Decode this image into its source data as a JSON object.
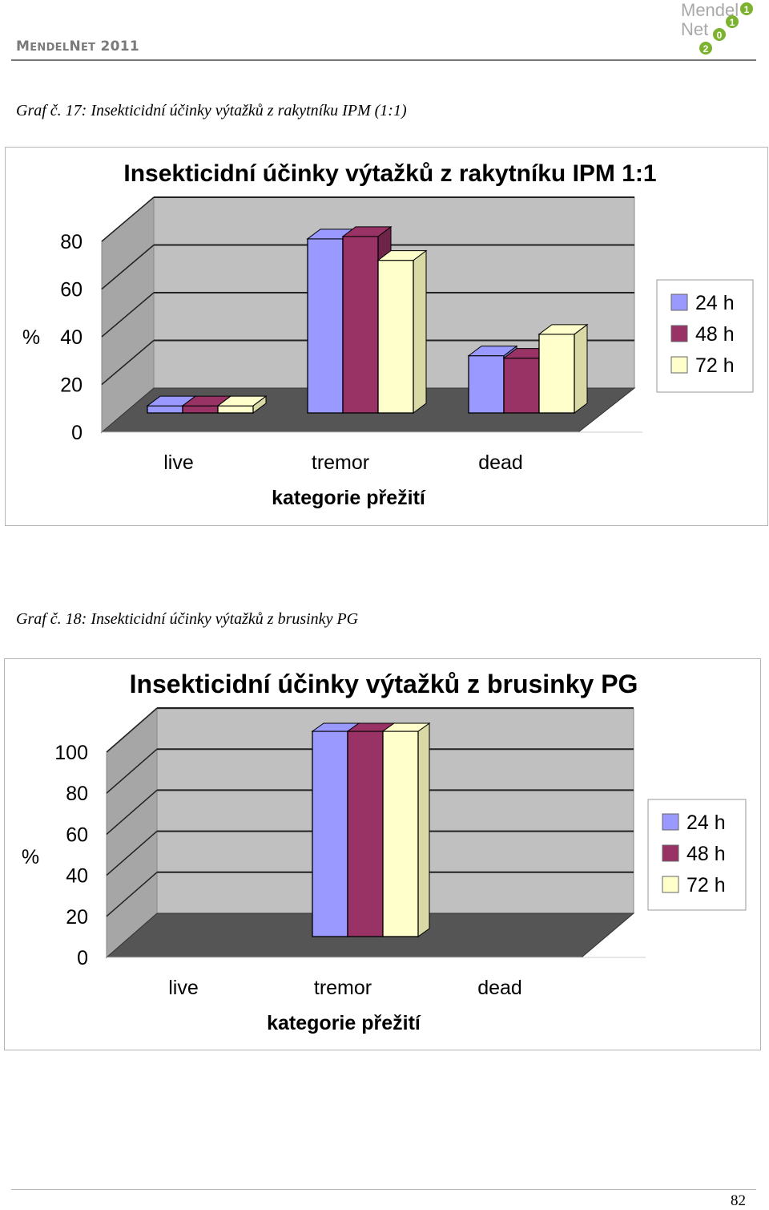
{
  "header": {
    "title_big1": "M",
    "title_small1": "ENDEL",
    "title_big2": "N",
    "title_small2": "ET",
    "title_year": " 2011",
    "logo_text1": "Mendel",
    "logo_text2": "Net",
    "logo_digits": [
      "1",
      "1",
      "0",
      "2"
    ]
  },
  "caption1": "Graf č. 17: Insekticidní účinky výtažků z rakytníku IPM (1:1)",
  "caption2": "Graf č. 18: Insekticidní účinky výtažků z brusinky PG",
  "page_number": "82",
  "colors": {
    "series": [
      "#9999ff",
      "#993366",
      "#ffffcc"
    ],
    "side": [
      "#7a7acc",
      "#6e2449",
      "#d9d9a6"
    ],
    "wall": "#c0c0c0",
    "floor": "#555555"
  },
  "chart_data": [
    {
      "type": "bar",
      "title": "Insekticidní účinky výtažků z rakytníku IPM 1:1",
      "xlabel": "kategorie přežití",
      "ylabel": "%",
      "categories": [
        "live",
        "tremor",
        "dead"
      ],
      "ylim": [
        0,
        80
      ],
      "yticks": [
        "0",
        "20",
        "40",
        "60",
        "80"
      ],
      "grid": true,
      "legend_position": "right",
      "series": [
        {
          "name": "24 h",
          "values": [
            3,
            73,
            24
          ]
        },
        {
          "name": "48 h",
          "values": [
            3,
            74,
            23
          ]
        },
        {
          "name": "72 h",
          "values": [
            3,
            64,
            33
          ]
        }
      ]
    },
    {
      "type": "bar",
      "title": "Insekticidní účinky výtažků z brusinky PG",
      "xlabel": "kategorie přežití",
      "ylabel": "%",
      "categories": [
        "live",
        "tremor",
        "dead"
      ],
      "ylim": [
        0,
        100
      ],
      "yticks": [
        "0",
        "20",
        "40",
        "60",
        "80",
        "100"
      ],
      "grid": true,
      "legend_position": "right",
      "series": [
        {
          "name": "24 h",
          "values": [
            0,
            100,
            0
          ]
        },
        {
          "name": "48 h",
          "values": [
            0,
            100,
            0
          ]
        },
        {
          "name": "72 h",
          "values": [
            0,
            100,
            0
          ]
        }
      ]
    }
  ]
}
